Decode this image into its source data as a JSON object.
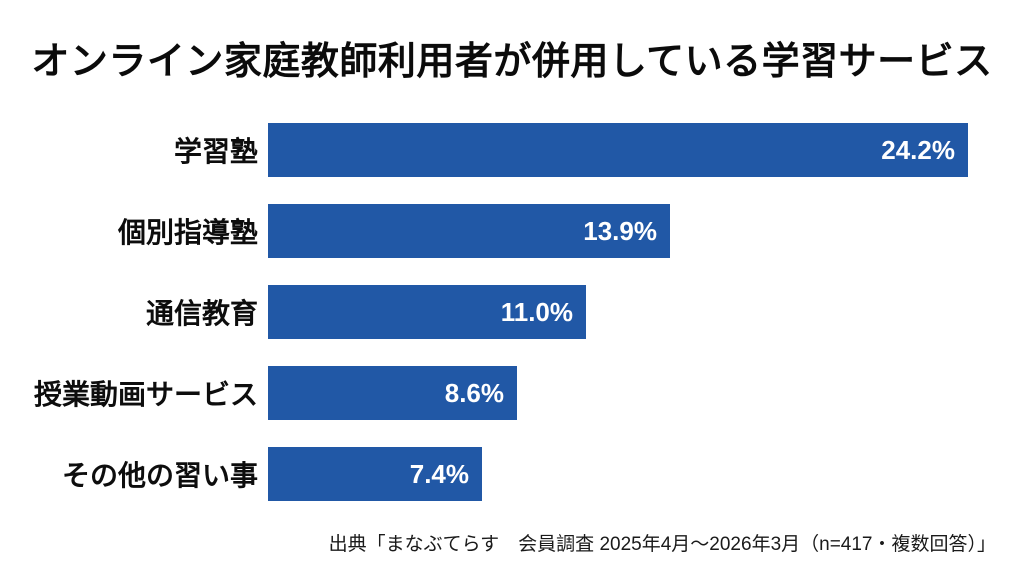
{
  "title": "オンライン家庭教師利用者が併用している学習サービス",
  "source": "出典「まなぶてらす　会員調査 2025年4月～2026年3月（n=417・複数回答）」",
  "colors": {
    "bar": "#2158A6",
    "background": "#ffffff",
    "title_text": "#0b0b0b",
    "label_text": "#0d0d0d",
    "value_text": "#ffffff",
    "source_text": "#1a1a1a"
  },
  "chart_data": {
    "type": "bar",
    "orientation": "horizontal",
    "title": "オンライン家庭教師利用者が併用している学習サービス",
    "categories": [
      "学習塾",
      "個別指導塾",
      "通信教育",
      "授業動画サービス",
      "その他の習い事"
    ],
    "values": [
      24.2,
      13.9,
      11.0,
      8.6,
      7.4
    ],
    "value_labels": [
      "24.2%",
      "13.9%",
      "11.0%",
      "8.6%",
      "7.4%"
    ],
    "xlabel": "",
    "ylabel": "",
    "xlim": [
      0,
      25
    ],
    "grid": false,
    "legend": false,
    "value_label_position": "inside-right",
    "source": "出典「まなぶてらす　会員調査 2025年4月～2026年3月（n=417・複数回答）」"
  }
}
